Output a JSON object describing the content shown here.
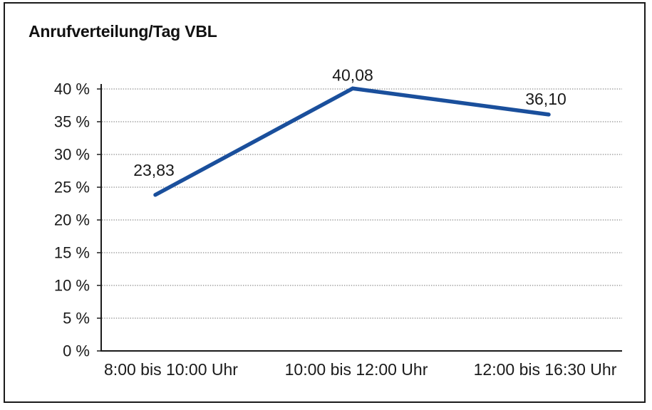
{
  "chart_data": {
    "type": "line",
    "title": "Anrufverteilung/Tag VBL",
    "categories": [
      "8:00 bis 10:00 Uhr",
      "10:00 bis 12:00 Uhr",
      "12:00 bis 16:30 Uhr"
    ],
    "values": [
      23.83,
      40.08,
      36.1
    ],
    "data_labels": [
      "23,83",
      "40,08",
      "36,10"
    ],
    "y_tick_labels": [
      "0 %",
      "5 %",
      "10 %",
      "15 %",
      "20 %",
      "25 %",
      "30 %",
      "35 %",
      "40 %"
    ],
    "ylabel": "",
    "xlabel": "",
    "ylim": [
      0,
      40
    ],
    "y_step": 5,
    "grid": "horizontal-dotted",
    "legend": "none",
    "colors": {
      "line": "#1a4f9c",
      "axis": "#1a1a1a",
      "grid": "#8c8c8c",
      "text": "#1a1a1a",
      "background": "#ffffff",
      "border": "#1a1a1a"
    }
  }
}
